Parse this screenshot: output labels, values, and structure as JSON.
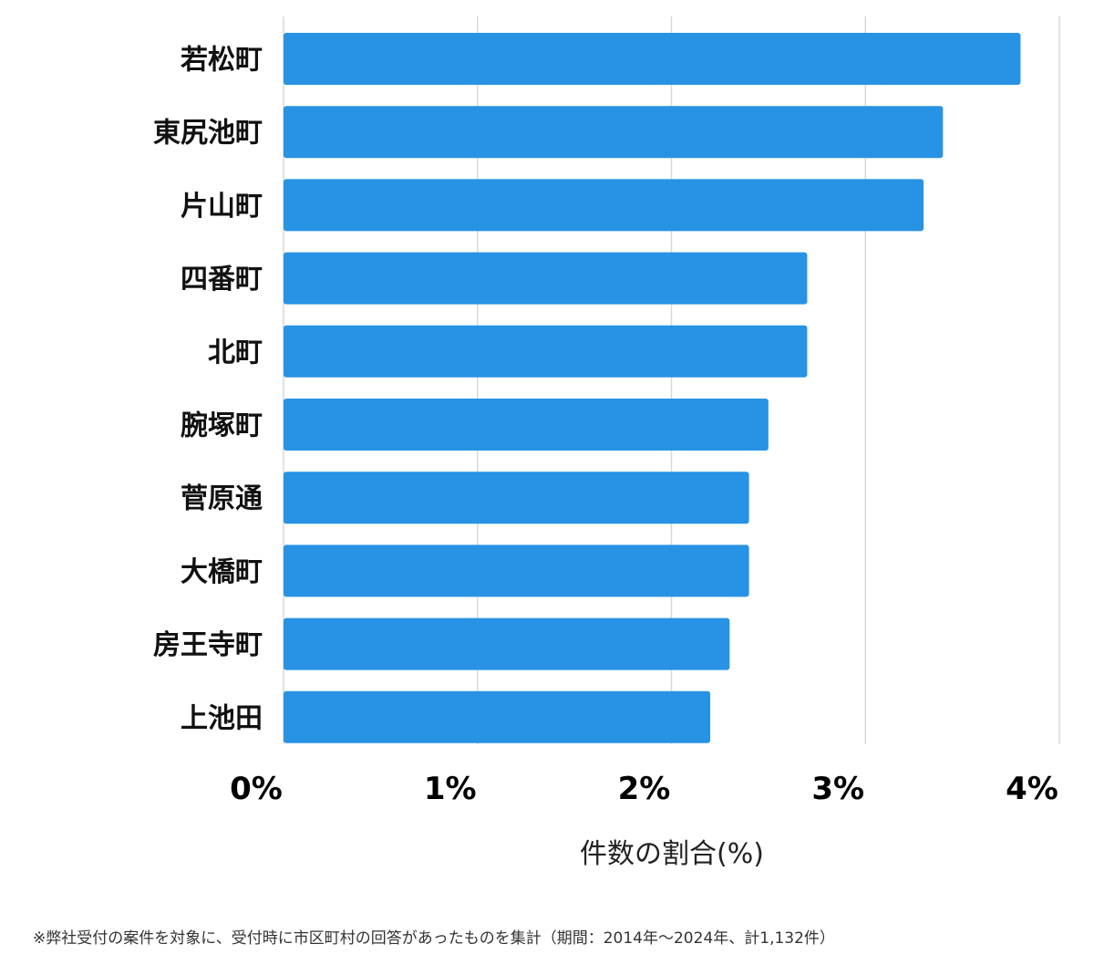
{
  "chart_data": {
    "type": "bar",
    "orientation": "horizontal",
    "categories": [
      "若松町",
      "東尻池町",
      "片山町",
      "四番町",
      "北町",
      "腕塚町",
      "菅原通",
      "大橋町",
      "房王寺町",
      "上池田"
    ],
    "values": [
      3.8,
      3.4,
      3.3,
      2.7,
      2.7,
      2.5,
      2.4,
      2.4,
      2.3,
      2.2
    ],
    "xlim": [
      0,
      4
    ],
    "xticks": [
      0,
      1,
      2,
      3,
      4
    ],
    "xtick_labels": [
      "0%",
      "1%",
      "2%",
      "3%",
      "4%"
    ],
    "xlabel": "件数の割合(%)",
    "ylabel": "",
    "title": "",
    "grid": "vertical",
    "legend": "none",
    "bar_color": "#2893e4",
    "grid_color": "#d9d9d9"
  },
  "footnote": "※弊社受付の案件を対象に、受付時に市区町村の回答があったものを集計（期間：2014年～2024年、計1,132件）"
}
